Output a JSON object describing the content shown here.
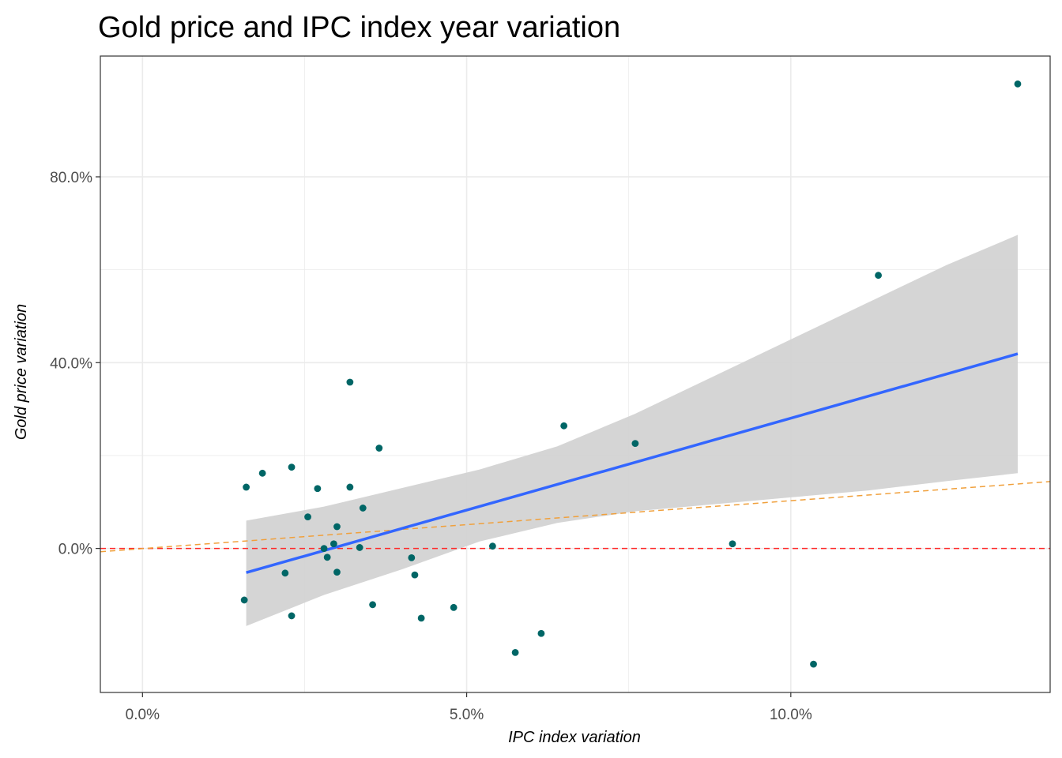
{
  "colors": {
    "points": "#006666",
    "fit_line": "#3366ff",
    "ribbon": "#d3d3d3",
    "zero_line": "#ff2a2a",
    "reference_line": "#f0a03c",
    "grid": "#ebebeb",
    "panel_border": "#333333"
  },
  "chart_data": {
    "type": "scatter",
    "title": "Gold price and IPC index year variation",
    "xlabel": "IPC index variation",
    "ylabel": "Gold price variation",
    "xlim": [
      -0.65,
      14.0
    ],
    "ylim": [
      -31,
      106
    ],
    "x_ticks": [
      {
        "value": 0,
        "label": "0.0%"
      },
      {
        "value": 5,
        "label": "5.0%"
      },
      {
        "value": 10,
        "label": "10.0%"
      }
    ],
    "y_ticks": [
      {
        "value": 0,
        "label": "0.0%"
      },
      {
        "value": 40,
        "label": "40.0%"
      },
      {
        "value": 80,
        "label": "80.0%"
      }
    ],
    "grid": true,
    "points": [
      {
        "x": 13.5,
        "y": 100.0
      },
      {
        "x": 11.35,
        "y": 58.8
      },
      {
        "x": 6.5,
        "y": 26.4
      },
      {
        "x": 7.6,
        "y": 22.6
      },
      {
        "x": 3.2,
        "y": 35.8
      },
      {
        "x": 3.65,
        "y": 21.6
      },
      {
        "x": 1.6,
        "y": 13.2
      },
      {
        "x": 1.85,
        "y": 16.2
      },
      {
        "x": 2.3,
        "y": 17.5
      },
      {
        "x": 2.7,
        "y": 12.9
      },
      {
        "x": 3.2,
        "y": 13.2
      },
      {
        "x": 3.4,
        "y": 8.7
      },
      {
        "x": 2.55,
        "y": 6.8
      },
      {
        "x": 3.0,
        "y": 4.7
      },
      {
        "x": 2.95,
        "y": 1.0
      },
      {
        "x": 2.8,
        "y": 0.0
      },
      {
        "x": 3.35,
        "y": 0.2
      },
      {
        "x": 2.85,
        "y": -1.9
      },
      {
        "x": 3.0,
        "y": -5.1
      },
      {
        "x": 2.2,
        "y": -5.3
      },
      {
        "x": 4.15,
        "y": -2.0
      },
      {
        "x": 4.2,
        "y": -5.7
      },
      {
        "x": 5.4,
        "y": 0.5
      },
      {
        "x": 9.1,
        "y": 1.0
      },
      {
        "x": 1.57,
        "y": -11.1
      },
      {
        "x": 2.3,
        "y": -14.5
      },
      {
        "x": 3.55,
        "y": -12.1
      },
      {
        "x": 4.3,
        "y": -15.0
      },
      {
        "x": 4.8,
        "y": -12.7
      },
      {
        "x": 5.75,
        "y": -22.4
      },
      {
        "x": 6.15,
        "y": -18.3
      },
      {
        "x": 10.35,
        "y": -24.9
      }
    ],
    "fit_line": {
      "x": [
        1.6,
        13.5
      ],
      "y": [
        -5.2,
        41.9
      ]
    },
    "confidence_band": {
      "x": [
        1.6,
        2.8,
        4.0,
        5.2,
        6.4,
        7.6,
        8.8,
        10.0,
        11.2,
        12.4,
        13.5
      ],
      "upper": [
        6.0,
        9.0,
        13.0,
        17.0,
        22.0,
        29.0,
        37.0,
        45.0,
        53.0,
        61.0,
        67.5
      ],
      "lower": [
        -16.7,
        -10.0,
        -4.5,
        1.5,
        5.5,
        8.0,
        9.5,
        11.0,
        12.5,
        14.5,
        16.2
      ]
    },
    "zero_line": {
      "y": 0
    },
    "reference_line": {
      "x": [
        -0.65,
        14.0
      ],
      "y": [
        -0.7,
        14.4
      ]
    }
  }
}
